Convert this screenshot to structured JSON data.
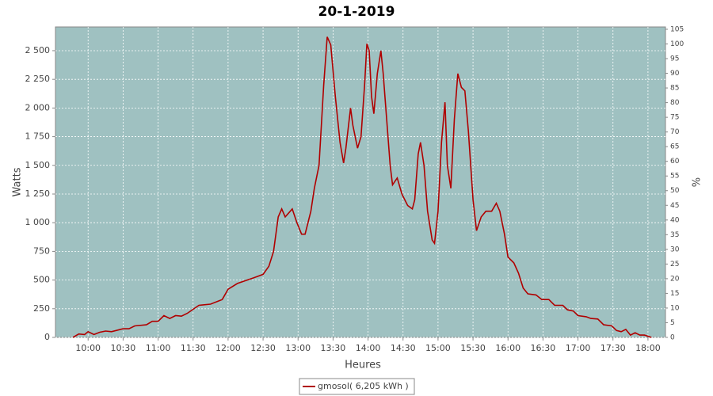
{
  "chart_data": {
    "type": "line",
    "title": "20-1-2019",
    "xlabel": "Heures",
    "ylabel": "Watts",
    "y2label": "%",
    "x": [
      "09:47",
      "09:52",
      "09:57",
      "10:00",
      "10:05",
      "10:10",
      "10:15",
      "10:20",
      "10:30",
      "10:35",
      "10:40",
      "10:50",
      "10:55",
      "11:00",
      "11:05",
      "11:10",
      "11:15",
      "11:20",
      "11:25",
      "11:35",
      "11:45",
      "11:55",
      "12:00",
      "12:08",
      "12:22",
      "12:30",
      "12:35",
      "12:39",
      "12:43",
      "12:46",
      "12:49",
      "12:55",
      "12:59",
      "13:03",
      "13:06",
      "13:11",
      "13:14",
      "13:18",
      "13:22",
      "13:25",
      "13:28",
      "13:32",
      "13:36",
      "13:39",
      "13:41",
      "13:45",
      "13:47",
      "13:51",
      "13:54",
      "13:57",
      "13:59",
      "14:01",
      "14:03",
      "14:05",
      "14:08",
      "14:11",
      "14:13",
      "14:16",
      "14:19",
      "14:21",
      "14:25",
      "14:29",
      "14:34",
      "14:38",
      "14:40",
      "14:43",
      "14:45",
      "14:48",
      "14:51",
      "14:55",
      "14:57",
      "15:00",
      "15:03",
      "15:06",
      "15:08",
      "15:11",
      "15:14",
      "15:17",
      "15:20",
      "15:23",
      "15:26",
      "15:30",
      "15:33",
      "15:37",
      "15:41",
      "15:46",
      "15:50",
      "15:53",
      "15:57",
      "16:00",
      "16:05",
      "16:09",
      "16:13",
      "16:17",
      "16:24",
      "16:29",
      "16:35",
      "16:40",
      "16:47",
      "16:51",
      "16:56",
      "17:00",
      "17:07",
      "17:11",
      "17:17",
      "17:22",
      "17:29",
      "17:33",
      "17:37",
      "17:41",
      "17:45",
      "17:49",
      "17:53",
      "17:57",
      "18:03"
    ],
    "series": [
      {
        "name": "gmosol( 6,205 kWh )",
        "color": "#b00000",
        "values": [
          0,
          30,
          25,
          50,
          25,
          45,
          55,
          50,
          75,
          75,
          100,
          110,
          140,
          140,
          190,
          165,
          190,
          185,
          210,
          280,
          290,
          330,
          420,
          470,
          520,
          550,
          620,
          750,
          1050,
          1120,
          1050,
          1120,
          1000,
          900,
          900,
          1100,
          1300,
          1500,
          2200,
          2620,
          2550,
          2100,
          1700,
          1520,
          1650,
          2000,
          1850,
          1650,
          1750,
          2200,
          2560,
          2500,
          2100,
          1950,
          2300,
          2500,
          2300,
          1900,
          1500,
          1330,
          1390,
          1250,
          1150,
          1120,
          1200,
          1600,
          1700,
          1500,
          1100,
          850,
          820,
          1100,
          1700,
          2050,
          1500,
          1300,
          1900,
          2300,
          2180,
          2150,
          1800,
          1200,
          930,
          1050,
          1100,
          1100,
          1170,
          1100,
          900,
          700,
          650,
          560,
          430,
          380,
          370,
          330,
          330,
          280,
          280,
          240,
          230,
          190,
          180,
          165,
          160,
          110,
          100,
          60,
          50,
          70,
          20,
          40,
          20,
          20,
          0
        ]
      }
    ],
    "xlim": [
      "09:32",
      "18:15"
    ],
    "xticks": [
      "10:00",
      "10:30",
      "11:00",
      "11:30",
      "12:00",
      "12:30",
      "13:00",
      "13:30",
      "14:00",
      "14:30",
      "15:00",
      "15:30",
      "16:00",
      "16:30",
      "17:00",
      "17:30",
      "18:00"
    ],
    "ylim": [
      0,
      2707
    ],
    "yticks": [
      0,
      250,
      500,
      750,
      {
        "value": 1000,
        "label": "1 000"
      },
      {
        "value": 1250,
        "label": "1 250"
      },
      {
        "value": 1500,
        "label": "1 500"
      },
      {
        "value": 1750,
        "label": "1 750"
      },
      {
        "value": 2000,
        "label": "2 000"
      },
      {
        "value": 2250,
        "label": "2 250"
      },
      {
        "value": 2500,
        "label": "2 500"
      }
    ],
    "y2lim": [
      0,
      105.8
    ],
    "y2ticks": [
      0,
      5,
      10,
      15,
      20,
      25,
      30,
      35,
      40,
      45,
      50,
      55,
      60,
      65,
      70,
      75,
      80,
      85,
      90,
      95,
      100,
      105
    ],
    "grid": true,
    "background": "#9fc1c1",
    "legend": "bottom"
  }
}
